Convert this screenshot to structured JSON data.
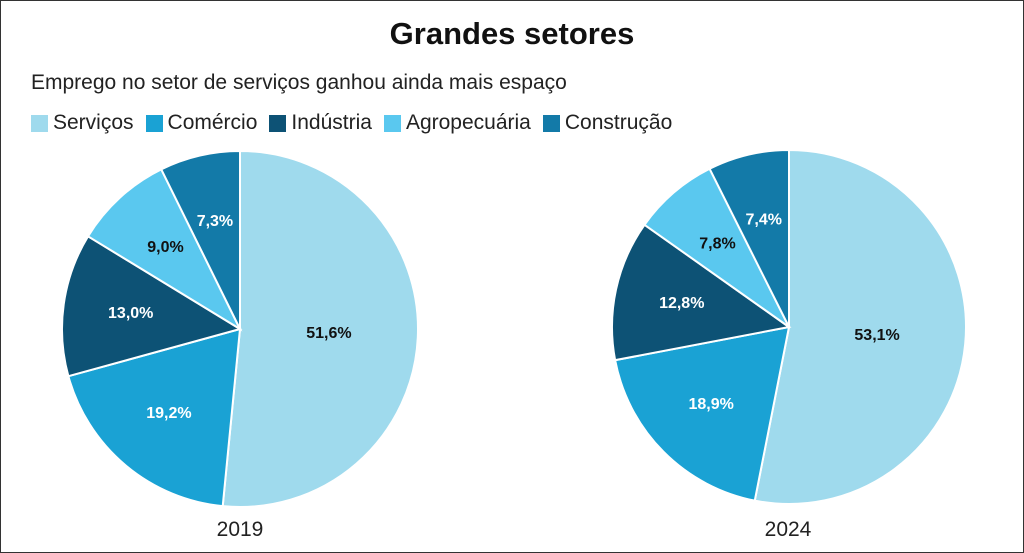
{
  "chart_data": {
    "type": "pie",
    "title": "Grandes setores",
    "subtitle": "Emprego no setor de serviços ganhou ainda mais espaço",
    "legend": [
      {
        "name": "Serviços",
        "color": "#9fdaed"
      },
      {
        "name": "Comércio",
        "color": "#1aa2d4"
      },
      {
        "name": "Indústria",
        "color": "#0d5275"
      },
      {
        "name": "Agropecuária",
        "color": "#5ac8ef"
      },
      {
        "name": "Construção",
        "color": "#137aa8"
      }
    ],
    "legend_position": "top-left",
    "charts": [
      {
        "label": "2019",
        "slices": [
          {
            "name": "Serviços",
            "value": 51.6,
            "text": "51,6%"
          },
          {
            "name": "Comércio",
            "value": 19.2,
            "text": "19,2%"
          },
          {
            "name": "Indústria",
            "value": 13.0,
            "text": "13,0%"
          },
          {
            "name": "Agropecuária",
            "value": 9.0,
            "text": "9,0%"
          },
          {
            "name": "Construção",
            "value": 7.3,
            "text": "7,3%"
          }
        ]
      },
      {
        "label": "2024",
        "slices": [
          {
            "name": "Serviços",
            "value": 53.1,
            "text": "53,1%"
          },
          {
            "name": "Comércio",
            "value": 18.9,
            "text": "18,9%"
          },
          {
            "name": "Indústria",
            "value": 12.8,
            "text": "12,8%"
          },
          {
            "name": "Agropecuária",
            "value": 7.8,
            "text": "7,8%"
          },
          {
            "name": "Construção",
            "value": 7.4,
            "text": "7,4%"
          }
        ]
      }
    ],
    "label_colors": {
      "Serviços": "#111111",
      "Comércio": "#ffffff",
      "Indústria": "#ffffff",
      "Agropecuária": "#111111",
      "Construção": "#ffffff"
    }
  }
}
